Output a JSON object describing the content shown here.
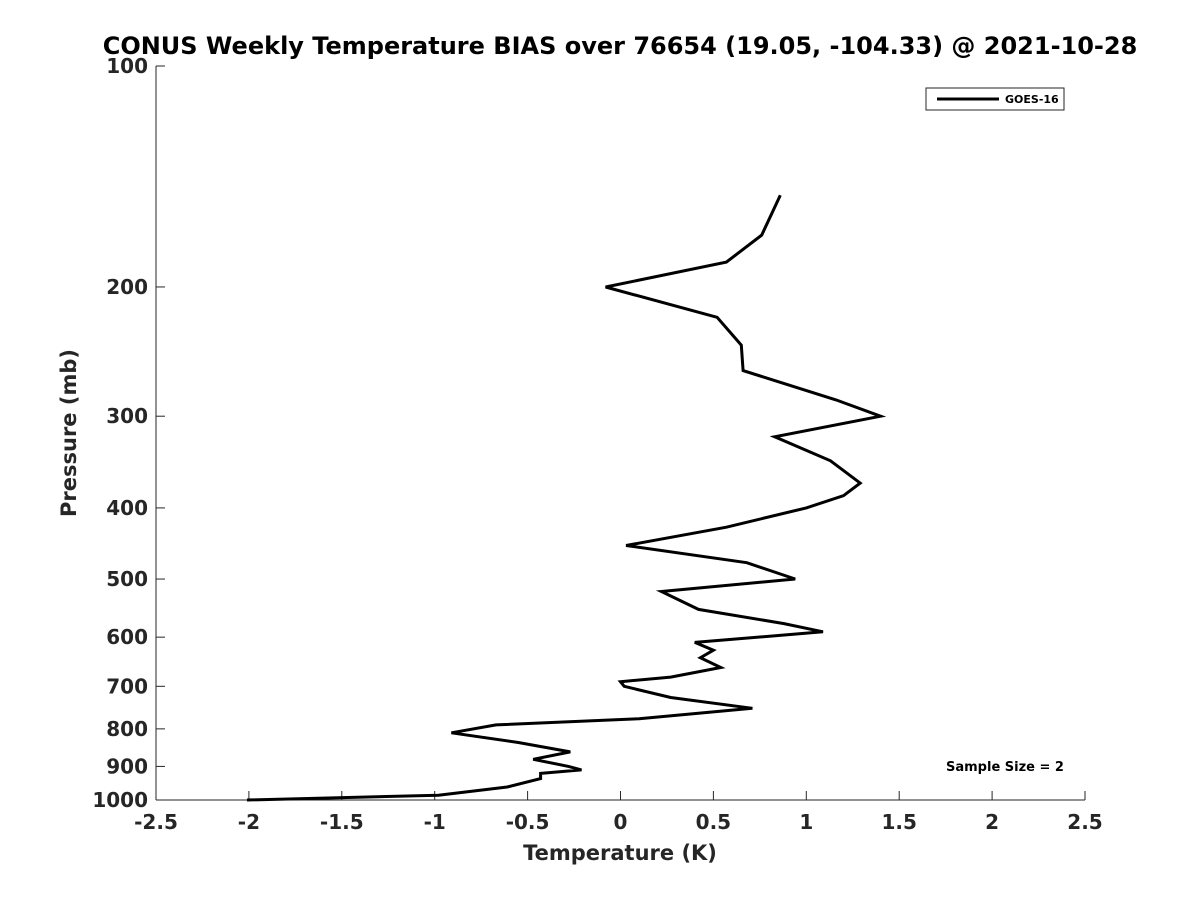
{
  "chart_data": {
    "type": "line",
    "title": "CONUS Weekly Temperature BIAS over 76654 (19.05, -104.33) @ 2021-10-28",
    "xlabel": "Temperature (K)",
    "ylabel": "Pressure (mb)",
    "xlim": [
      -2.5,
      2.5
    ],
    "ylim": [
      100,
      1000
    ],
    "y_scale": "log",
    "y_reversed": true,
    "x_ticks": [
      "-2.5",
      "-2",
      "-1.5",
      "-1",
      "-0.5",
      "0",
      "0.5",
      "1",
      "1.5",
      "2",
      "2.5"
    ],
    "y_ticks": [
      "100",
      "200",
      "300",
      "400",
      "500",
      "600",
      "700",
      "800",
      "900",
      "1000"
    ],
    "grid": false,
    "legend_position": "top-right",
    "series": [
      {
        "name": "GOES-16",
        "color": "#000000",
        "x": [
          0.86,
          0.76,
          0.57,
          -0.08,
          0.52,
          0.65,
          0.66,
          1.16,
          1.4,
          0.83,
          1.13,
          1.29,
          1.2,
          1.0,
          0.57,
          0.03,
          0.68,
          0.94,
          0.22,
          0.42,
          0.88,
          1.09,
          0.4,
          0.5,
          0.43,
          0.54,
          0.27,
          0.0,
          0.02,
          0.27,
          0.71,
          0.1,
          -0.67,
          -0.91,
          -0.55,
          -0.27,
          -0.47,
          -0.28,
          -0.21,
          -0.43,
          -0.43,
          -0.61,
          -0.98,
          -2.01
        ],
        "y": [
          150,
          170,
          185,
          200,
          220,
          240,
          260,
          285,
          300,
          320,
          345,
          370,
          385,
          400,
          425,
          450,
          475,
          500,
          520,
          550,
          575,
          590,
          610,
          625,
          640,
          660,
          680,
          690,
          700,
          725,
          750,
          775,
          790,
          810,
          835,
          860,
          880,
          900,
          910,
          920,
          935,
          960,
          985,
          1000
        ]
      }
    ],
    "annotations": [
      "Sample Size = 2"
    ]
  }
}
